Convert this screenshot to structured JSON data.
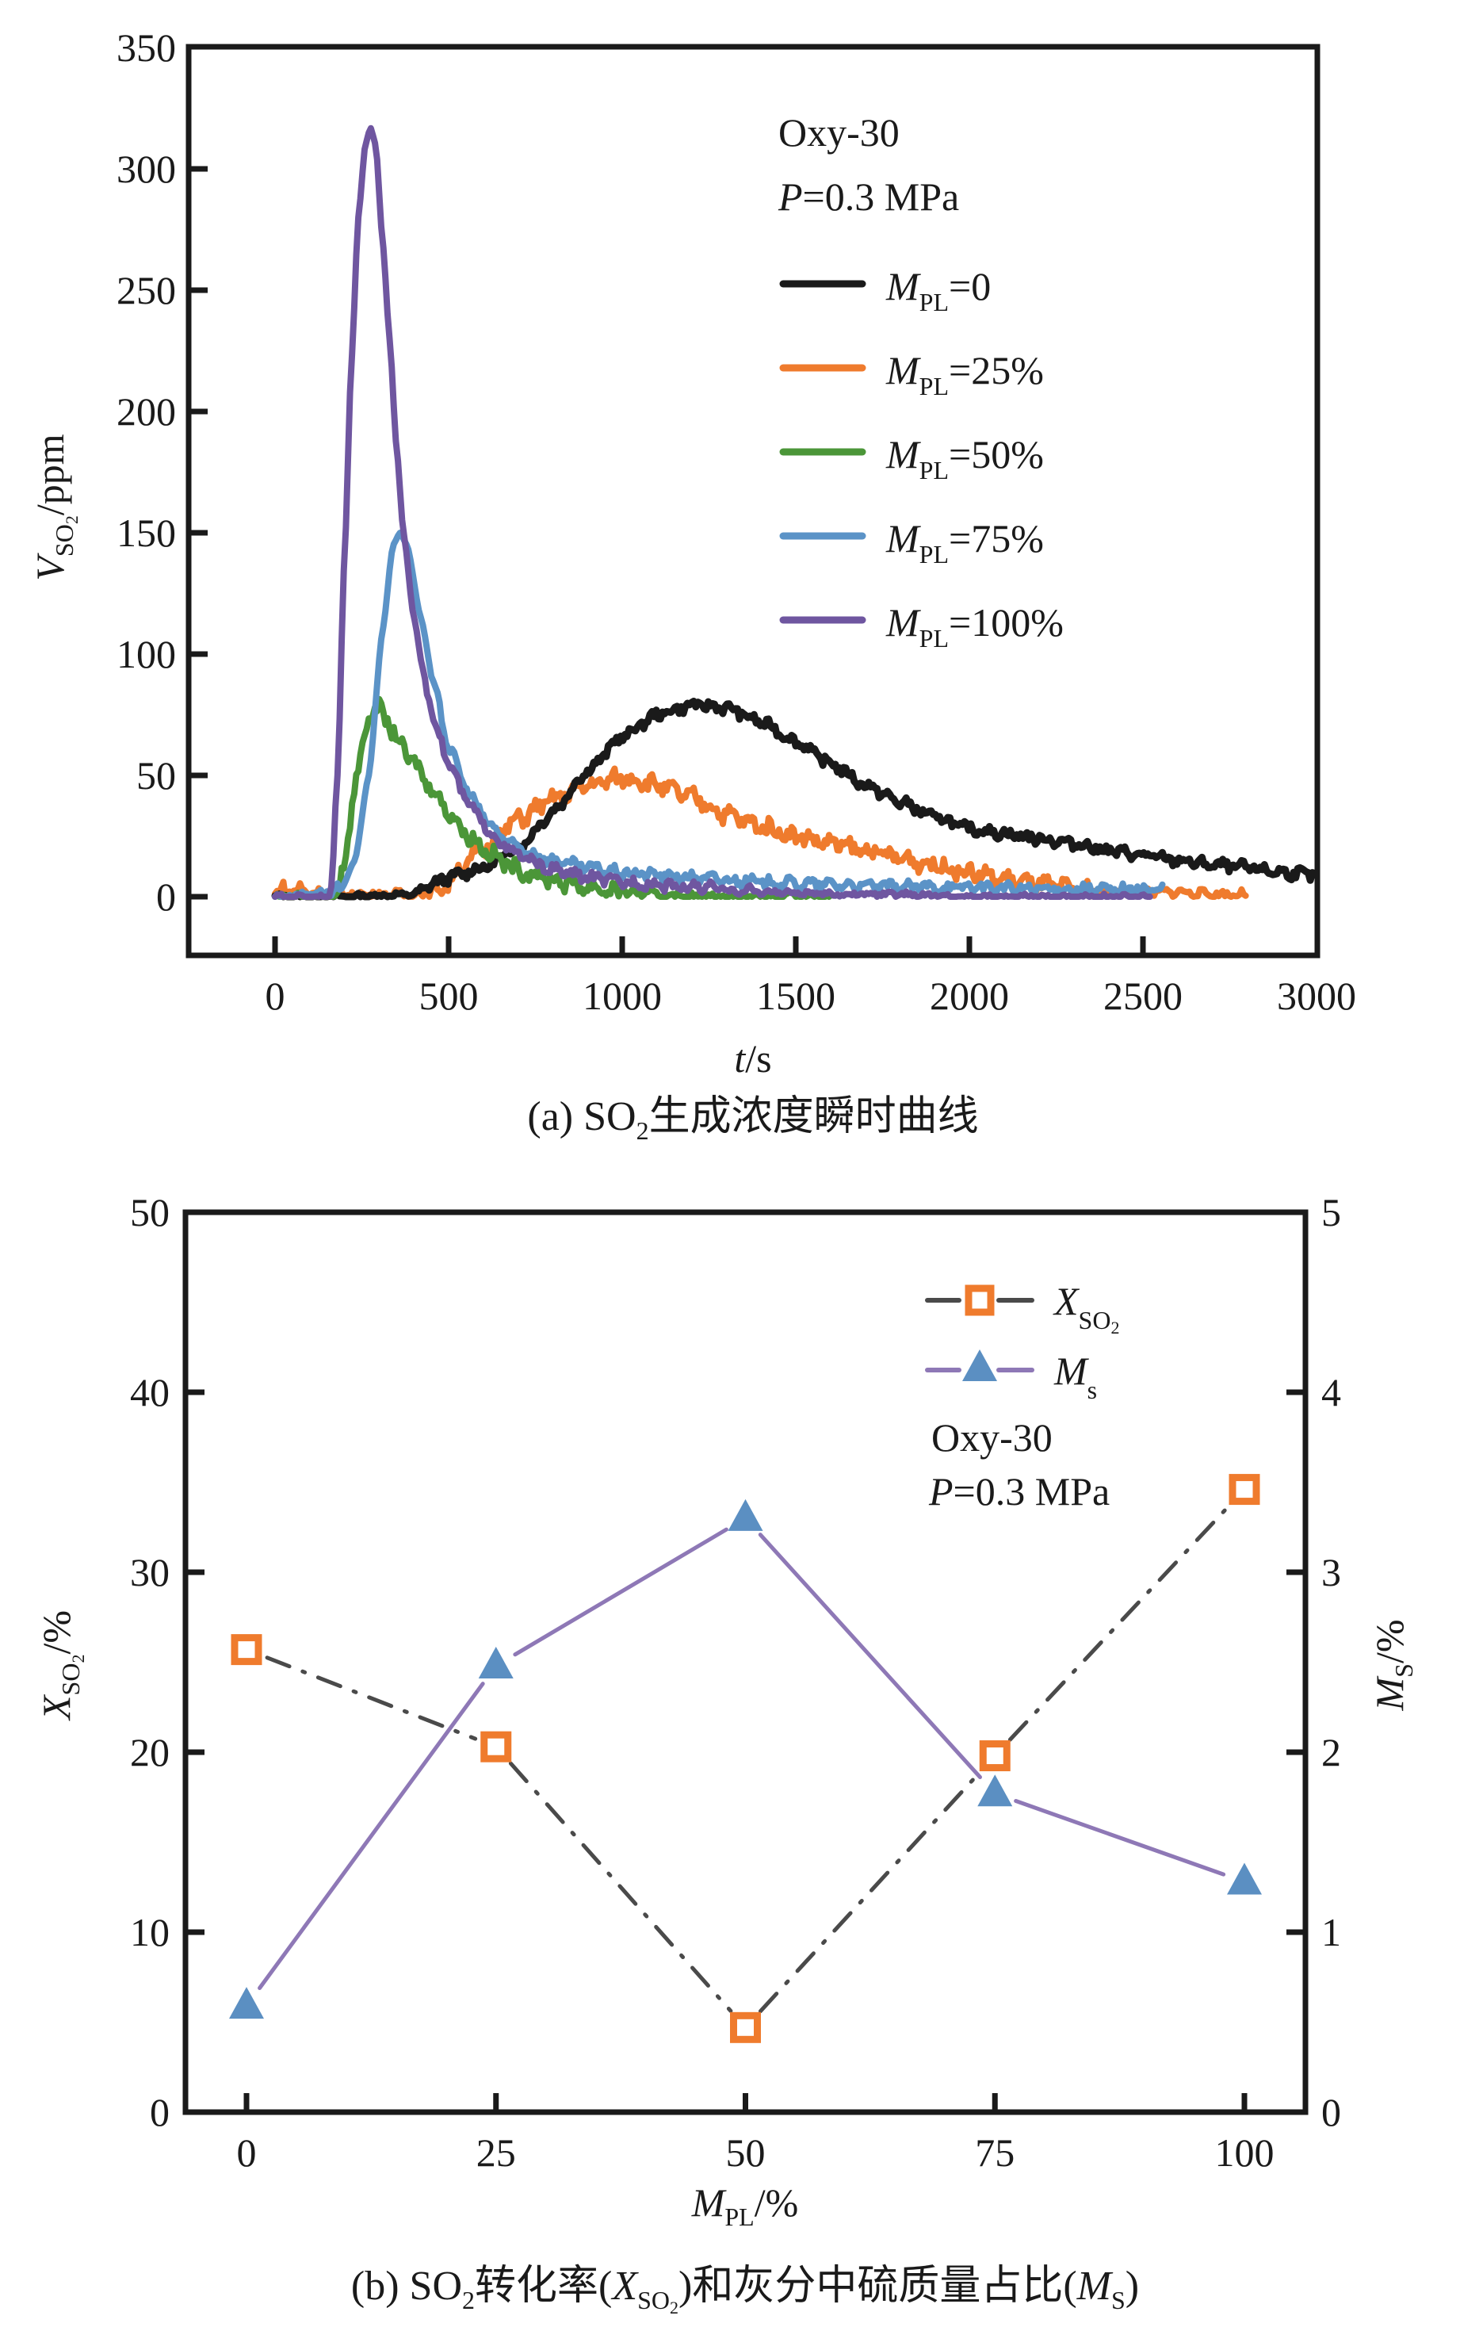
{
  "chart_data": [
    {
      "type": "line",
      "panel": "a",
      "caption": {
        "prefix": "(a) SO",
        "sub": "2",
        "suffix": "生成浓度瞬时曲线"
      },
      "xlabel": {
        "italic": "t",
        "rest": "/s"
      },
      "ylabel": {
        "italic": "V",
        "sub": "SO",
        "sub2": "2",
        "rest": "/ppm"
      },
      "xlim": [
        -250,
        3000
      ],
      "ylim": [
        -25,
        350
      ],
      "xticks": [
        0,
        500,
        1000,
        1500,
        2000,
        2500,
        3000
      ],
      "yticks": [
        0,
        50,
        100,
        150,
        200,
        250,
        300,
        350
      ],
      "annotation": {
        "line1": "Oxy-30",
        "line2_italic": "P",
        "line2_rest": "=0.3 MPa"
      },
      "legend_position": "top-right",
      "series": [
        {
          "name": "M_PL=0",
          "label_main": "M",
          "label_sub": "PL",
          "label_rest": "=0",
          "color": "#1a1a1a",
          "x": [
            0,
            200,
            400,
            450,
            500,
            600,
            700,
            800,
            900,
            1000,
            1100,
            1200,
            1300,
            1400,
            1500,
            1600,
            1700,
            1800,
            1900,
            2000,
            2100,
            2200,
            2300,
            2400,
            2500,
            2600,
            2700,
            2800,
            2900,
            3000
          ],
          "y": [
            0,
            0,
            1,
            5,
            8,
            12,
            20,
            35,
            52,
            66,
            75,
            79,
            78,
            72,
            64,
            55,
            46,
            39,
            33,
            28,
            26,
            24,
            22,
            19,
            17,
            15,
            13,
            12,
            10,
            9
          ]
        },
        {
          "name": "M_PL=25%",
          "label_main": "M",
          "label_sub": "PL",
          "label_rest": "=25%",
          "color": "#ef7b2d",
          "x": [
            0,
            20,
            100,
            200,
            400,
            480,
            520,
            600,
            700,
            800,
            900,
            1000,
            1050,
            1100,
            1200,
            1300,
            1400,
            1500,
            1600,
            1700,
            1800,
            1900,
            2000,
            2100,
            2200,
            2300,
            2400,
            2500,
            2600,
            2700,
            2800
          ],
          "y": [
            1,
            3,
            2,
            1,
            1,
            3,
            10,
            20,
            32,
            40,
            46,
            49,
            48,
            46,
            41,
            34,
            29,
            25,
            22,
            19,
            16,
            13,
            10,
            7,
            5,
            3,
            2,
            2,
            2,
            1,
            1
          ]
        },
        {
          "name": "M_PL=50%",
          "label_main": "M",
          "label_sub": "PL",
          "label_rest": "=50%",
          "color": "#4b9638",
          "x": [
            0,
            180,
            200,
            230,
            260,
            290,
            310,
            350,
            400,
            450,
            500,
            550,
            600,
            650,
            700,
            800,
            900,
            1000,
            1100,
            1200,
            1400,
            1600
          ],
          "y": [
            0,
            0,
            15,
            45,
            70,
            78,
            76,
            65,
            55,
            45,
            35,
            26,
            20,
            15,
            11,
            7,
            4,
            2,
            1,
            0,
            0,
            0
          ]
        },
        {
          "name": "M_PL=75%",
          "label_main": "M",
          "label_sub": "PL",
          "label_rest": "=75%",
          "color": "#5b93c7",
          "x": [
            0,
            150,
            190,
            230,
            270,
            310,
            340,
            360,
            380,
            420,
            460,
            500,
            550,
            600,
            650,
            700,
            800,
            900,
            1000,
            1200,
            1400,
            1600,
            1800,
            2000,
            2200,
            2400,
            2560
          ],
          "y": [
            0,
            2,
            3,
            15,
            50,
            110,
            145,
            150,
            145,
            115,
            85,
            62,
            45,
            33,
            25,
            20,
            15,
            12,
            10,
            8,
            6,
            5,
            4,
            4,
            3,
            3,
            3
          ]
        },
        {
          "name": "M_PL=100%",
          "label_main": "M",
          "label_sub": "PL",
          "label_rest": "=100%",
          "color": "#6f56a0",
          "x": [
            0,
            160,
            180,
            200,
            220,
            240,
            260,
            275,
            290,
            310,
            330,
            350,
            370,
            400,
            430,
            460,
            500,
            550,
            600,
            650,
            700,
            800,
            900,
            1000,
            1200,
            1400,
            1600,
            1800,
            2000,
            2200,
            2520
          ],
          "y": [
            0,
            0,
            50,
            140,
            220,
            280,
            310,
            317,
            310,
            270,
            230,
            185,
            150,
            115,
            90,
            72,
            55,
            40,
            30,
            22,
            17,
            11,
            8,
            6,
            4,
            2,
            1,
            1,
            0,
            0,
            0
          ]
        }
      ]
    },
    {
      "type": "line",
      "panel": "b",
      "caption": {
        "prefix": "(b) SO",
        "sub": "2",
        "mid": "转化率(",
        "xit": "X",
        "xsub": "SO",
        "xsub2": "2",
        "mid2": ")和灰分中硫质量占比(",
        "mit": "M",
        "msub": "S",
        "end": ")"
      },
      "xlabel": {
        "italic": "M",
        "sub": "PL",
        "rest": "/%"
      },
      "ylabel_left": {
        "italic": "X",
        "sub": "SO",
        "sub2": "2",
        "rest": "/%"
      },
      "ylabel_right": {
        "italic": "M",
        "sub": "S",
        "rest": "/%"
      },
      "xlim": [
        -3,
        103
      ],
      "ylim_left": [
        0,
        50
      ],
      "ylim_right": [
        0,
        5
      ],
      "xticks": [
        0,
        25,
        50,
        75,
        100
      ],
      "yticks_left": [
        0,
        10,
        20,
        30,
        40,
        50
      ],
      "yticks_right": [
        0,
        1,
        2,
        3,
        4,
        5
      ],
      "annotation": {
        "line1": "Oxy-30",
        "line2_italic": "P",
        "line2_rest": "=0.3 MPa"
      },
      "legend_position": "top-right",
      "categories": [
        0,
        25,
        50,
        75,
        100
      ],
      "series": [
        {
          "name": "X_SO2",
          "axis": "left",
          "marker": "open-square",
          "line_style": "dash-dot",
          "line_color": "#4a4a4a",
          "marker_color": "#ef7b2d",
          "label_main": "X",
          "label_sub": "SO",
          "label_sub2": "2",
          "values": [
            25.7,
            20.3,
            4.7,
            19.8,
            34.6
          ]
        },
        {
          "name": "M_s",
          "axis": "right",
          "marker": "filled-triangle",
          "line_style": "solid",
          "line_color": "#8e78b6",
          "marker_color": "#5b8fc2",
          "label_main": "M",
          "label_sub": "s",
          "values": [
            0.59,
            2.48,
            3.3,
            1.77,
            1.28
          ]
        }
      ]
    }
  ]
}
